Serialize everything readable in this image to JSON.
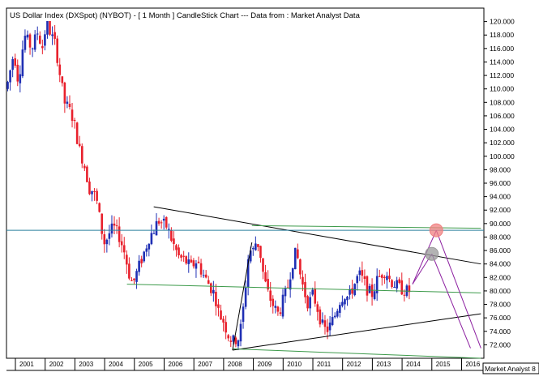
{
  "chart_data": {
    "type": "candlestick",
    "title": "US Dollar Index (DXSpot) (NYBOT) -  [ 1 Month ] CandleStick Chart --- Data from : Market Analyst Data",
    "watermark": "Market Analyst 8",
    "ylim": [
      70.0,
      122.0
    ],
    "xlim": [
      2000.7,
      2016.75
    ],
    "y_ticks": [
      "72.000",
      "74.000",
      "76.000",
      "78.000",
      "80.000",
      "82.000",
      "84.000",
      "86.000",
      "88.000",
      "90.000",
      "92.000",
      "94.000",
      "96.000",
      "98.000",
      "100.000",
      "102.000",
      "104.000",
      "106.000",
      "108.000",
      "110.000",
      "112.000",
      "114.000",
      "116.000",
      "118.000",
      "120.000"
    ],
    "x_ticks": [
      "2001",
      "2002",
      "2003",
      "2004",
      "2005",
      "2006",
      "2007",
      "2008",
      "2009",
      "2010",
      "2011",
      "2012",
      "2013",
      "2014",
      "2015",
      "2016"
    ],
    "anchors": [
      [
        2000.7,
        110.0
      ],
      [
        2000.95,
        115.5
      ],
      [
        2001.1,
        111.0
      ],
      [
        2001.3,
        118.0
      ],
      [
        2001.55,
        116.0
      ],
      [
        2001.75,
        118.5
      ],
      [
        2001.9,
        116.0
      ],
      [
        2002.05,
        120.0
      ],
      [
        2002.2,
        118.0
      ],
      [
        2002.35,
        116.5
      ],
      [
        2002.5,
        112.0
      ],
      [
        2002.65,
        108.0
      ],
      [
        2002.8,
        107.0
      ],
      [
        2002.95,
        105.5
      ],
      [
        2003.15,
        101.0
      ],
      [
        2003.3,
        99.0
      ],
      [
        2003.5,
        95.0
      ],
      [
        2003.6,
        95.0
      ],
      [
        2003.75,
        93.0
      ],
      [
        2003.9,
        89.0
      ],
      [
        2004.0,
        87.0
      ],
      [
        2004.15,
        88.5
      ],
      [
        2004.3,
        89.5
      ],
      [
        2004.5,
        88.0
      ],
      [
        2004.65,
        86.0
      ],
      [
        2004.85,
        82.0
      ],
      [
        2004.95,
        81.0
      ],
      [
        2005.1,
        83.0
      ],
      [
        2005.35,
        86.0
      ],
      [
        2005.5,
        88.0
      ],
      [
        2005.65,
        89.0
      ],
      [
        2005.8,
        90.5
      ],
      [
        2005.95,
        90.0
      ],
      [
        2006.1,
        89.5
      ],
      [
        2006.3,
        87.0
      ],
      [
        2006.5,
        85.0
      ],
      [
        2006.7,
        84.5
      ],
      [
        2006.9,
        83.5
      ],
      [
        2007.1,
        84.5
      ],
      [
        2007.3,
        82.5
      ],
      [
        2007.5,
        81.0
      ],
      [
        2007.7,
        79.5
      ],
      [
        2007.85,
        76.5
      ],
      [
        2008.0,
        75.5
      ],
      [
        2008.15,
        73.5
      ],
      [
        2008.3,
        72.5
      ],
      [
        2008.5,
        73.0
      ],
      [
        2008.6,
        75.0
      ],
      [
        2008.7,
        79.0
      ],
      [
        2008.85,
        86.0
      ],
      [
        2009.0,
        86.0
      ],
      [
        2009.1,
        87.5
      ],
      [
        2009.2,
        86.5
      ],
      [
        2009.35,
        82.0
      ],
      [
        2009.5,
        79.5
      ],
      [
        2009.7,
        77.5
      ],
      [
        2009.85,
        76.5
      ],
      [
        2009.95,
        78.0
      ],
      [
        2010.15,
        80.5
      ],
      [
        2010.3,
        84.0
      ],
      [
        2010.45,
        86.0
      ],
      [
        2010.55,
        83.0
      ],
      [
        2010.7,
        80.0
      ],
      [
        2010.85,
        78.0
      ],
      [
        2011.0,
        79.5
      ],
      [
        2011.15,
        77.5
      ],
      [
        2011.3,
        75.0
      ],
      [
        2011.45,
        74.0
      ],
      [
        2011.6,
        75.0
      ],
      [
        2011.75,
        76.5
      ],
      [
        2011.9,
        78.5
      ],
      [
        2012.05,
        79.5
      ],
      [
        2012.2,
        79.0
      ],
      [
        2012.4,
        81.0
      ],
      [
        2012.55,
        82.5
      ],
      [
        2012.7,
        81.5
      ],
      [
        2012.85,
        80.0
      ],
      [
        2013.0,
        79.5
      ],
      [
        2013.15,
        81.5
      ],
      [
        2013.3,
        82.5
      ],
      [
        2013.45,
        83.0
      ],
      [
        2013.6,
        81.5
      ],
      [
        2013.75,
        81.0
      ],
      [
        2013.9,
        80.5
      ],
      [
        2014.1,
        80.0
      ],
      [
        2014.25,
        80.0
      ]
    ],
    "lines": [
      {
        "name": "resistance-trendline",
        "color": "#000000",
        "x": [
          2005.65,
          2016.65
        ],
        "y": [
          92.5,
          84.0
        ]
      },
      {
        "name": "support-trendline",
        "color": "#000000",
        "x": [
          2008.3,
          2016.65
        ],
        "y": [
          71.2,
          76.6
        ]
      },
      {
        "name": "horizontal-blue-line",
        "color": "#2a7f9e",
        "x": [
          2000.7,
          2016.75
        ],
        "y": [
          89.0,
          89.0
        ]
      },
      {
        "name": "upper-green-line",
        "color": "#3c9a4a",
        "x": [
          2008.95,
          2016.65
        ],
        "y": [
          89.7,
          89.3
        ]
      },
      {
        "name": "middle-green-line",
        "color": "#3c9a4a",
        "x": [
          2004.75,
          2016.65
        ],
        "y": [
          81.0,
          79.7
        ]
      },
      {
        "name": "lower-green-line",
        "color": "#3c9a4a",
        "x": [
          2008.3,
          2016.65
        ],
        "y": [
          71.4,
          70.0
        ]
      },
      {
        "name": "rally-trendline",
        "color": "#000000",
        "x": [
          2008.3,
          2008.95
        ],
        "y": [
          71.2,
          87.2
        ]
      },
      {
        "name": "projection-up-1",
        "color": "#8c1fa0",
        "x": [
          2014.35,
          2015.0
        ],
        "y": [
          81.0,
          85.5
        ]
      },
      {
        "name": "projection-up-2",
        "color": "#8c1fa0",
        "x": [
          2014.35,
          2015.15
        ],
        "y": [
          81.0,
          89.0
        ]
      },
      {
        "name": "projection-down-1",
        "color": "#8c1fa0",
        "x": [
          2015.0,
          2016.3
        ],
        "y": [
          85.5,
          71.5
        ]
      },
      {
        "name": "projection-down-2",
        "color": "#8c1fa0",
        "x": [
          2015.15,
          2016.65
        ],
        "y": [
          89.0,
          71.5
        ]
      }
    ],
    "markers": [
      {
        "name": "red-target-circle",
        "color": "#f08080",
        "x": 2015.15,
        "y": 89.0
      },
      {
        "name": "grey-target-circle",
        "color": "#9a9a9a",
        "x": 2015.0,
        "y": 85.5
      }
    ],
    "up_color": "#1f2fb4",
    "down_color": "#e8202c",
    "grid": false
  }
}
